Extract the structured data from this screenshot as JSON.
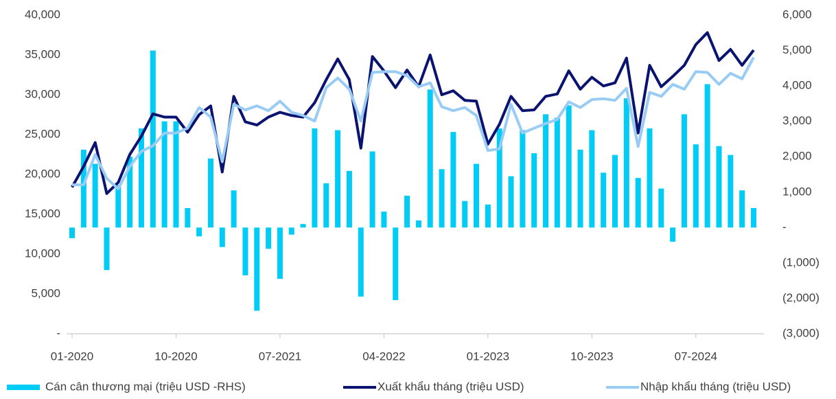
{
  "chart_data": {
    "type": "bar-line",
    "categories": [
      "01-2020",
      null,
      null,
      null,
      null,
      null,
      null,
      null,
      null,
      "10-2020",
      null,
      null,
      null,
      null,
      null,
      null,
      null,
      null,
      "07-2021",
      null,
      null,
      null,
      null,
      null,
      null,
      null,
      null,
      "04-2022",
      null,
      null,
      null,
      null,
      null,
      null,
      null,
      null,
      "01-2023",
      null,
      null,
      null,
      null,
      null,
      null,
      null,
      null,
      "10-2023",
      null,
      null,
      null,
      null,
      null,
      null,
      null,
      null,
      "07-2024",
      null,
      null,
      null,
      null,
      null
    ],
    "series": [
      {
        "name": "Cán cân thương mại (triệu USD -RHS)",
        "type": "bar",
        "axis": "y2",
        "color": "#00ccf5",
        "values": [
          -300,
          2200,
          1800,
          -1200,
          1200,
          2000,
          2800,
          5000,
          3000,
          3000,
          550,
          -250,
          1950,
          -550,
          1050,
          -1350,
          -2350,
          -600,
          -1450,
          -200,
          100,
          2800,
          1250,
          2750,
          1600,
          -1950,
          2150,
          450,
          -2050,
          900,
          200,
          3900,
          1650,
          2700,
          750,
          1800,
          650,
          2800,
          1450,
          2750,
          2100,
          3200,
          3100,
          3450,
          2200,
          2750,
          1550,
          2050,
          3650,
          1400,
          2800,
          1100,
          -400,
          3200,
          2350,
          4050,
          2300,
          2050,
          1050,
          550
        ]
      },
      {
        "name": "Xuất khẩu tháng (triệu USD)",
        "type": "line",
        "color": "#0a1470",
        "values": [
          18400,
          21000,
          24000,
          17600,
          19000,
          22500,
          24800,
          27600,
          27200,
          27200,
          25300,
          27500,
          28600,
          20300,
          29800,
          26600,
          26200,
          27200,
          27800,
          27400,
          27200,
          29000,
          31900,
          34500,
          31900,
          23300,
          34800,
          33000,
          30900,
          33100,
          31000,
          35000,
          30000,
          30500,
          29300,
          29200,
          23800,
          26300,
          29800,
          28000,
          28100,
          29800,
          30100,
          33000,
          30700,
          32200,
          31100,
          31500,
          34600,
          25200,
          33700,
          31000,
          32300,
          33700,
          36300,
          37800,
          34300,
          35700,
          33700,
          35600
        ]
      },
      {
        "name": "Nhập khẩu tháng (triệu USD)",
        "type": "line",
        "color": "#99ccf5",
        "values": [
          18700,
          18700,
          22500,
          19500,
          18200,
          21000,
          22900,
          23600,
          25200,
          25200,
          25800,
          28400,
          27200,
          21600,
          28800,
          28100,
          28600,
          28000,
          29200,
          27800,
          27400,
          26700,
          30900,
          32100,
          30700,
          26700,
          32800,
          32900,
          32900,
          32400,
          31000,
          31500,
          28500,
          28000,
          28400,
          27400,
          23000,
          23200,
          28800,
          25200,
          25800,
          26400,
          26900,
          29100,
          28400,
          29400,
          29500,
          29300,
          30800,
          23500,
          30300,
          29800,
          31300,
          30700,
          32900,
          32800,
          31300,
          32700,
          32000,
          34700
        ]
      }
    ],
    "ylim": [
      0,
      40000
    ],
    "yticks": [
      {
        "value": 0,
        "label": "-"
      },
      {
        "value": 5000,
        "label": "5,000"
      },
      {
        "value": 10000,
        "label": "10,000"
      },
      {
        "value": 15000,
        "label": "15,000"
      },
      {
        "value": 20000,
        "label": "20,000"
      },
      {
        "value": 25000,
        "label": "25,000"
      },
      {
        "value": 30000,
        "label": "30,000"
      },
      {
        "value": 35000,
        "label": "35,000"
      },
      {
        "value": 40000,
        "label": "40,000"
      }
    ],
    "y2lim": [
      -3000,
      6000
    ],
    "y2ticks": [
      {
        "value": -3000,
        "label": "(3,000)"
      },
      {
        "value": -2000,
        "label": "(2,000)"
      },
      {
        "value": -1000,
        "label": "(1,000)"
      },
      {
        "value": 0,
        "label": "-"
      },
      {
        "value": 1000,
        "label": "1,000"
      },
      {
        "value": 2000,
        "label": "2,000"
      },
      {
        "value": 3000,
        "label": "3,000"
      },
      {
        "value": 4000,
        "label": "4,000"
      },
      {
        "value": 5000,
        "label": "5,000"
      },
      {
        "value": 6000,
        "label": "6,000"
      }
    ],
    "legend": "bottom",
    "grid": false
  }
}
